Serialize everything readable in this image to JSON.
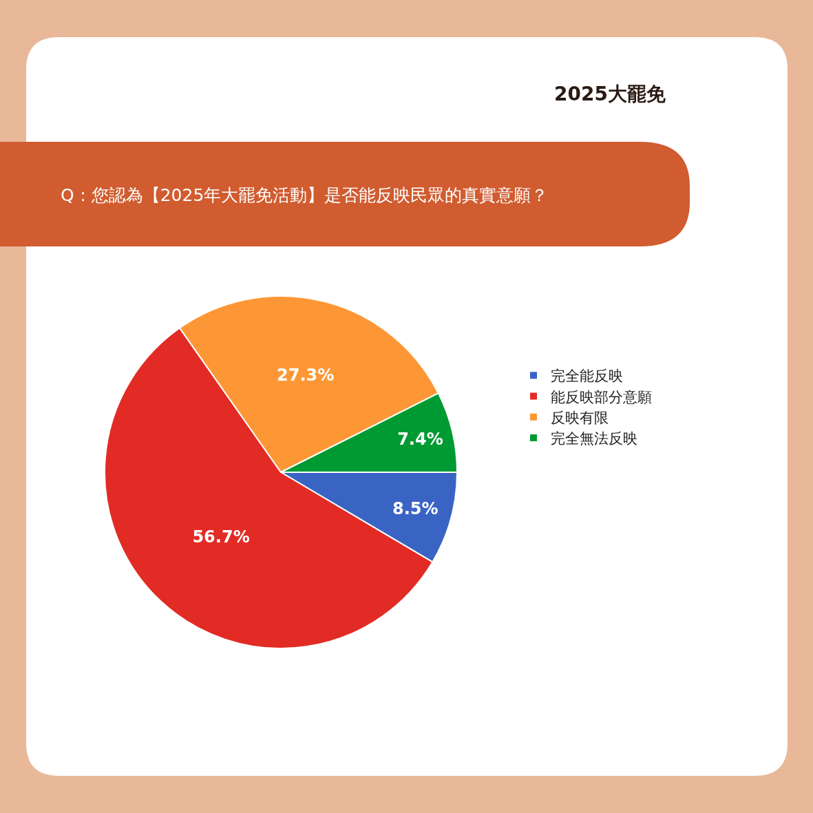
{
  "chart_data": {
    "type": "pie",
    "title": "Q：您認為【2025年大罷免活動】是否能反映民眾的真實意願？",
    "subtitle": "2025大罷免",
    "categories": [
      "完全能反映",
      "能反映部分意願",
      "反映有限",
      "完全無法反映"
    ],
    "values": [
      8.5,
      56.7,
      27.3,
      7.4
    ],
    "colors": [
      "#3a64c4",
      "#e22b24",
      "#fd9735",
      "#009a33"
    ],
    "value_labels": [
      "8.5%",
      "56.7%",
      "27.3%",
      "7.4%"
    ],
    "legend": "right"
  }
}
